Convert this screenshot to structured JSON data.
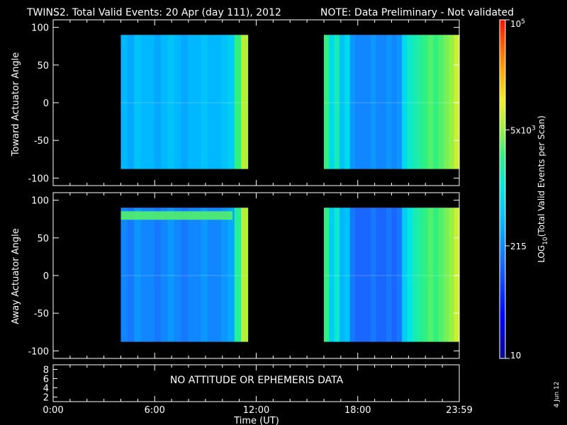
{
  "header": {
    "title": "TWINS2. Total Valid Events: 20 Apr (day 111), 2012",
    "note": "NOTE: Data Preliminary - Not validated",
    "note_color": "#ff2020"
  },
  "chart_data": [
    {
      "type": "heatmap",
      "panel": "top",
      "title": "",
      "ylabel": "Toward Actuator Angle",
      "xlabel": "",
      "ylim": [
        -110,
        110
      ],
      "yticks": [
        100,
        50,
        0,
        -50,
        -100
      ],
      "xlim_hours": [
        0,
        24
      ],
      "y_extent": [
        -88,
        90
      ],
      "segments": [
        {
          "start": "4:00",
          "end": "11:30",
          "description_level": "low-moderate",
          "columns_log": [
            2.6,
            2.5,
            2.7,
            2.6,
            2.6,
            2.5,
            2.6,
            2.7,
            2.6,
            2.5,
            2.6,
            2.6,
            2.7,
            2.6,
            2.6,
            2.7,
            2.8,
            3.4,
            3.8
          ]
        },
        {
          "start": "16:00",
          "end": "24:00",
          "description_level": "moderate-high",
          "columns_log": [
            3.4,
            2.9,
            3.2,
            2.7,
            2.9,
            2.4,
            2.3,
            2.3,
            2.3,
            2.4,
            2.3,
            2.3,
            2.4,
            2.3,
            2.4,
            2.9,
            3.1,
            3.2,
            3.3,
            3.4,
            3.5,
            3.4,
            3.5,
            3.6,
            3.7,
            3.9
          ]
        }
      ]
    },
    {
      "type": "heatmap",
      "panel": "bottom",
      "title": "",
      "ylabel": "Away Actuator Angle",
      "xlabel": "",
      "ylim": [
        -110,
        110
      ],
      "yticks": [
        100,
        50,
        0,
        -50,
        -100
      ],
      "xlim_hours": [
        0,
        24
      ],
      "y_extent": [
        -88,
        90
      ],
      "segments": [
        {
          "start": "4:00",
          "end": "11:30",
          "description_level": "low-moderate",
          "band_top_log": 3.5,
          "columns_log": [
            2.3,
            2.2,
            2.4,
            2.3,
            2.3,
            2.2,
            2.3,
            2.4,
            2.3,
            2.2,
            2.3,
            2.3,
            2.4,
            2.3,
            2.3,
            2.4,
            2.5,
            3.3,
            3.8
          ]
        },
        {
          "start": "16:00",
          "end": "24:00",
          "description_level": "moderate-high",
          "columns_log": [
            3.4,
            2.8,
            3.1,
            2.6,
            2.7,
            2.2,
            2.1,
            2.1,
            2.1,
            2.2,
            2.1,
            2.1,
            2.2,
            2.1,
            2.2,
            2.8,
            3.0,
            3.2,
            3.3,
            3.4,
            3.5,
            3.4,
            3.5,
            3.6,
            3.7,
            3.9
          ]
        }
      ]
    },
    {
      "type": "line",
      "panel": "ephemeris",
      "ylabel": "",
      "yticks": [
        8,
        6,
        4,
        2
      ],
      "ylim": [
        1,
        9
      ],
      "message": "NO ATTITUDE OR EPHEMERIS DATA",
      "xlabel": "Time (UT)",
      "xticks": [
        {
          "label": "0:00",
          "hour": 0
        },
        {
          "label": "6:00",
          "hour": 6
        },
        {
          "label": "12:00",
          "hour": 12
        },
        {
          "label": "18:00",
          "hour": 18
        },
        {
          "label": "23:59",
          "hour": 24
        }
      ]
    }
  ],
  "colorbar": {
    "label": "LOG10(Total Valid Events per Scan)",
    "label_main": "LOG",
    "label_sub": "10",
    "label_rest": "(Total Valid Events per Scan)",
    "range_log": [
      1,
      5
    ],
    "ticks": [
      {
        "base": "10",
        "exp": "5",
        "value_log": 5
      },
      {
        "base": "5x10",
        "exp": "3",
        "value_log": 3.7
      },
      {
        "base": "215",
        "exp": "",
        "value_log": 2.33
      },
      {
        "base": "10",
        "exp": "",
        "value_log": 1
      }
    ]
  },
  "footer": {
    "date_stamp": "4 Jun 12"
  }
}
